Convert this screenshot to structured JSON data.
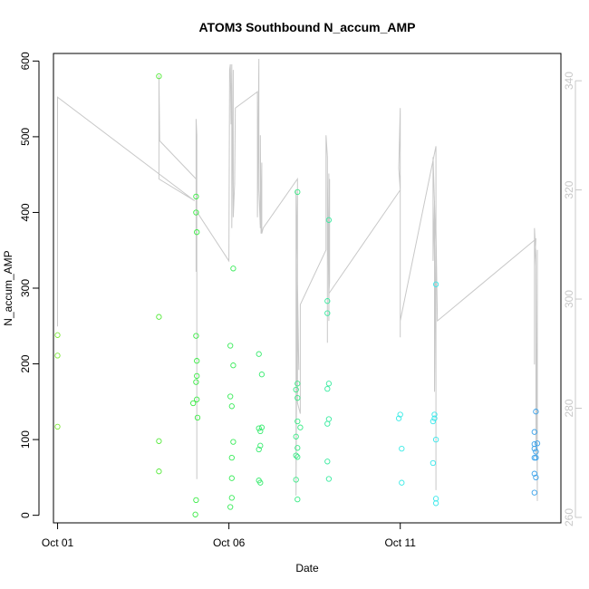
{
  "chart_data": {
    "type": "scatter",
    "title": "ATOM3 Southbound N_accum_AMP",
    "xlabel": "Date",
    "ylabel": "N_accum_AMP",
    "x_ticks": [
      {
        "date": "2012-10-01",
        "label": "Oct 01"
      },
      {
        "date": "2012-10-06",
        "label": "Oct 06"
      },
      {
        "date": "2012-10-11",
        "label": "Oct 11"
      }
    ],
    "xlim": [
      "2012-09-30T21:07",
      "2012-10-15T16:31"
    ],
    "ylim": [
      -10,
      610
    ],
    "y_ticks": [
      0,
      100,
      200,
      300,
      400,
      500,
      600
    ],
    "y2_ticks": [
      260,
      280,
      300,
      320,
      340
    ],
    "y2lim": [
      259,
      345
    ],
    "grid": false,
    "legend": "none",
    "colors": {
      "line": "#c8c8c8",
      "axis": "#000000",
      "right_axis": "#c8c8c8"
    },
    "points": [
      {
        "x": "2012-10-01T00:00",
        "y": 238,
        "color": "#7fe83a"
      },
      {
        "x": "2012-10-01T00:00",
        "y": 211,
        "color": "#7fe83a"
      },
      {
        "x": "2012-10-01T00:00",
        "y": 117,
        "color": "#7fe83a"
      },
      {
        "x": "2012-10-03T23:00",
        "y": 580,
        "color": "#55ea3a"
      },
      {
        "x": "2012-10-03T23:00",
        "y": 262,
        "color": "#55ea3a"
      },
      {
        "x": "2012-10-03T23:00",
        "y": 98,
        "color": "#55ea3a"
      },
      {
        "x": "2012-10-03T23:00",
        "y": 58,
        "color": "#55ea3a"
      },
      {
        "x": "2012-10-04T23:00",
        "y": 148,
        "color": "#3aeb45"
      },
      {
        "x": "2012-10-05T01:00",
        "y": 421,
        "color": "#3aeb45"
      },
      {
        "x": "2012-10-05T01:00",
        "y": 400,
        "color": "#3aeb45"
      },
      {
        "x": "2012-10-05T01:30",
        "y": 374,
        "color": "#3aeb45"
      },
      {
        "x": "2012-10-05T01:00",
        "y": 237,
        "color": "#3aeb45"
      },
      {
        "x": "2012-10-05T01:30",
        "y": 204,
        "color": "#3aeb45"
      },
      {
        "x": "2012-10-05T01:30",
        "y": 184,
        "color": "#3aeb45"
      },
      {
        "x": "2012-10-05T01:00",
        "y": 176,
        "color": "#3aeb45"
      },
      {
        "x": "2012-10-05T01:30",
        "y": 153,
        "color": "#3aeb45"
      },
      {
        "x": "2012-10-05T02:00",
        "y": 129,
        "color": "#3aeb45"
      },
      {
        "x": "2012-10-05T01:00",
        "y": 20,
        "color": "#3aeb45"
      },
      {
        "x": "2012-10-05T00:30",
        "y": 1,
        "color": "#3aeb45"
      },
      {
        "x": "2012-10-06T03:00",
        "y": 326,
        "color": "#3aeb5a"
      },
      {
        "x": "2012-10-06T01:00",
        "y": 224,
        "color": "#3aeb5a"
      },
      {
        "x": "2012-10-06T03:00",
        "y": 198,
        "color": "#3aeb5a"
      },
      {
        "x": "2012-10-06T01:00",
        "y": 157,
        "color": "#3aeb5a"
      },
      {
        "x": "2012-10-06T02:00",
        "y": 144,
        "color": "#3aeb5a"
      },
      {
        "x": "2012-10-06T03:00",
        "y": 97,
        "color": "#3aeb5a"
      },
      {
        "x": "2012-10-06T02:00",
        "y": 76,
        "color": "#3aeb5a"
      },
      {
        "x": "2012-10-06T02:00",
        "y": 49,
        "color": "#3aeb5a"
      },
      {
        "x": "2012-10-06T02:00",
        "y": 23,
        "color": "#3aeb5a"
      },
      {
        "x": "2012-10-06T01:00",
        "y": 11,
        "color": "#3aeb5a"
      },
      {
        "x": "2012-10-06T21:00",
        "y": 213,
        "color": "#3aeb70"
      },
      {
        "x": "2012-10-06T23:00",
        "y": 186,
        "color": "#3aeb70"
      },
      {
        "x": "2012-10-06T21:00",
        "y": 115,
        "color": "#3aeb70"
      },
      {
        "x": "2012-10-06T23:00",
        "y": 116,
        "color": "#3aeb70"
      },
      {
        "x": "2012-10-06T22:00",
        "y": 111,
        "color": "#3aeb70"
      },
      {
        "x": "2012-10-06T22:00",
        "y": 92,
        "color": "#3aeb70"
      },
      {
        "x": "2012-10-06T21:00",
        "y": 87,
        "color": "#3aeb70"
      },
      {
        "x": "2012-10-06T21:00",
        "y": 46,
        "color": "#3aeb70"
      },
      {
        "x": "2012-10-06T22:00",
        "y": 43,
        "color": "#3aeb70"
      },
      {
        "x": "2012-10-08T00:00",
        "y": 427,
        "color": "#3aeb86"
      },
      {
        "x": "2012-10-08T00:00",
        "y": 174,
        "color": "#3aeb86"
      },
      {
        "x": "2012-10-07T23:00",
        "y": 166,
        "color": "#3aeb86"
      },
      {
        "x": "2012-10-08T00:00",
        "y": 155,
        "color": "#3aeb86"
      },
      {
        "x": "2012-10-08T00:00",
        "y": 124,
        "color": "#3aeb86"
      },
      {
        "x": "2012-10-08T02:00",
        "y": 116,
        "color": "#3aeb86"
      },
      {
        "x": "2012-10-07T23:00",
        "y": 104,
        "color": "#3aeb86"
      },
      {
        "x": "2012-10-08T00:00",
        "y": 89,
        "color": "#3aeb86"
      },
      {
        "x": "2012-10-07T23:00",
        "y": 79,
        "color": "#3aeb86"
      },
      {
        "x": "2012-10-08T00:00",
        "y": 77,
        "color": "#3aeb86"
      },
      {
        "x": "2012-10-07T23:00",
        "y": 47,
        "color": "#3aeb86"
      },
      {
        "x": "2012-10-08T00:00",
        "y": 21,
        "color": "#3aeb86"
      },
      {
        "x": "2012-10-08T22:00",
        "y": 390,
        "color": "#3aeba0"
      },
      {
        "x": "2012-10-08T21:00",
        "y": 283,
        "color": "#3aeba0"
      },
      {
        "x": "2012-10-08T21:00",
        "y": 267,
        "color": "#3aeba0"
      },
      {
        "x": "2012-10-08T22:00",
        "y": 174,
        "color": "#3aeba0"
      },
      {
        "x": "2012-10-08T21:00",
        "y": 167,
        "color": "#3aeba0"
      },
      {
        "x": "2012-10-08T22:00",
        "y": 127,
        "color": "#3aeba0"
      },
      {
        "x": "2012-10-08T21:00",
        "y": 121,
        "color": "#3aeba0"
      },
      {
        "x": "2012-10-08T21:00",
        "y": 71,
        "color": "#3aeba0"
      },
      {
        "x": "2012-10-08T22:00",
        "y": 48,
        "color": "#3aeba0"
      },
      {
        "x": "2012-10-11T00:00",
        "y": 133,
        "color": "#3aebe6"
      },
      {
        "x": "2012-10-10T23:00",
        "y": 128,
        "color": "#3aebe6"
      },
      {
        "x": "2012-10-11T01:00",
        "y": 88,
        "color": "#3aebe6"
      },
      {
        "x": "2012-10-11T01:00",
        "y": 43,
        "color": "#3aebe6"
      },
      {
        "x": "2012-10-12T01:00",
        "y": 305,
        "color": "#3ae8eb"
      },
      {
        "x": "2012-10-12T00:00",
        "y": 133,
        "color": "#3ae8eb"
      },
      {
        "x": "2012-10-11T23:00",
        "y": 124,
        "color": "#3ae8eb"
      },
      {
        "x": "2012-10-12T00:00",
        "y": 128,
        "color": "#3ae8eb"
      },
      {
        "x": "2012-10-12T01:00",
        "y": 100,
        "color": "#3ae8eb"
      },
      {
        "x": "2012-10-11T23:00",
        "y": 69,
        "color": "#3ae8eb"
      },
      {
        "x": "2012-10-12T01:00",
        "y": 22,
        "color": "#3ae8eb"
      },
      {
        "x": "2012-10-12T01:00",
        "y": 16,
        "color": "#3ae8eb"
      },
      {
        "x": "2012-10-14T23:00",
        "y": 137,
        "color": "#3aa2eb"
      },
      {
        "x": "2012-10-14T22:00",
        "y": 110,
        "color": "#3aa2eb"
      },
      {
        "x": "2012-10-15T00:00",
        "y": 95,
        "color": "#3aa2eb"
      },
      {
        "x": "2012-10-14T22:00",
        "y": 94,
        "color": "#3aa2eb"
      },
      {
        "x": "2012-10-14T22:00",
        "y": 88,
        "color": "#3aa2eb"
      },
      {
        "x": "2012-10-14T23:00",
        "y": 84,
        "color": "#3aa2eb"
      },
      {
        "x": "2012-10-14T22:00",
        "y": 76,
        "color": "#3aa2eb"
      },
      {
        "x": "2012-10-14T23:00",
        "y": 76,
        "color": "#3aa2eb"
      },
      {
        "x": "2012-10-14T22:00",
        "y": 55,
        "color": "#3aa2eb"
      },
      {
        "x": "2012-10-14T23:00",
        "y": 50,
        "color": "#3aa2eb"
      },
      {
        "x": "2012-10-14T22:00",
        "y": 30,
        "color": "#3aa2eb"
      }
    ],
    "line_series": [
      [
        "2012-10-01T00:00",
        295
      ],
      [
        "2012-10-01T00:00",
        337
      ],
      [
        "2012-10-05T00:00",
        318
      ],
      [
        "2012-10-03T23:00",
        322
      ],
      [
        "2012-10-03T23:00",
        341
      ],
      [
        "2012-10-03T23:30",
        329
      ],
      [
        "2012-10-05T01:00",
        322
      ],
      [
        "2012-10-05T01:00",
        318
      ],
      [
        "2012-10-05T01:00",
        305
      ],
      [
        "2012-10-05T01:00",
        333
      ],
      [
        "2012-10-05T01:30",
        330
      ],
      [
        "2012-10-05T01:30",
        267
      ],
      [
        "2012-10-05T01:30",
        316
      ],
      [
        "2012-10-06T00:00",
        307
      ],
      [
        "2012-10-06T00:30",
        342
      ],
      [
        "2012-10-06T01:00",
        343
      ],
      [
        "2012-10-06T01:30",
        332
      ],
      [
        "2012-10-06T02:00",
        343
      ],
      [
        "2012-10-06T02:00",
        313
      ],
      [
        "2012-10-06T03:00",
        342
      ],
      [
        "2012-10-06T03:00",
        315
      ],
      [
        "2012-10-06T04:00",
        321
      ],
      [
        "2012-10-06T04:30",
        335
      ],
      [
        "2012-10-06T20:00",
        338
      ],
      [
        "2012-10-06T20:00",
        315
      ],
      [
        "2012-10-06T21:00",
        344
      ],
      [
        "2012-10-06T21:00",
        320
      ],
      [
        "2012-10-06T22:00",
        313
      ],
      [
        "2012-10-06T22:00",
        330
      ],
      [
        "2012-10-06T22:30",
        312
      ],
      [
        "2012-10-06T23:00",
        325
      ],
      [
        "2012-10-06T23:00",
        312
      ],
      [
        "2012-10-07T00:00",
        313
      ],
      [
        "2012-10-08T00:00",
        322
      ],
      [
        "2012-10-08T00:00",
        298
      ],
      [
        "2012-10-08T01:00",
        287
      ],
      [
        "2012-10-07T23:00",
        320
      ],
      [
        "2012-10-07T23:00",
        264
      ],
      [
        "2012-10-08T00:00",
        321
      ],
      [
        "2012-10-08T00:00",
        281
      ],
      [
        "2012-10-08T02:00",
        279
      ],
      [
        "2012-10-08T02:00",
        299
      ],
      [
        "2012-10-08T20:00",
        309
      ],
      [
        "2012-10-08T20:00",
        330
      ],
      [
        "2012-10-08T21:00",
        326
      ],
      [
        "2012-10-08T21:00",
        292
      ],
      [
        "2012-10-08T21:00",
        322
      ],
      [
        "2012-10-08T22:00",
        300
      ],
      [
        "2012-10-08T22:00",
        323
      ],
      [
        "2012-10-08T22:00",
        296
      ],
      [
        "2012-10-08T22:30",
        322
      ],
      [
        "2012-10-08T22:30",
        303
      ],
      [
        "2012-10-08T22:00",
        301
      ],
      [
        "2012-10-11T00:00",
        320
      ],
      [
        "2012-10-10T23:00",
        324
      ],
      [
        "2012-10-11T00:00",
        335
      ],
      [
        "2012-10-11T00:00",
        320
      ],
      [
        "2012-10-11T00:00",
        329
      ],
      [
        "2012-10-11T00:00",
        293
      ],
      [
        "2012-10-11T00:00",
        296
      ],
      [
        "2012-10-12T01:00",
        328
      ],
      [
        "2012-10-12T01:00",
        309
      ],
      [
        "2012-10-11T23:00",
        326
      ],
      [
        "2012-10-11T23:00",
        307
      ],
      [
        "2012-10-12T00:00",
        318
      ],
      [
        "2012-10-12T00:00",
        283
      ],
      [
        "2012-10-12T01:00",
        315
      ],
      [
        "2012-10-12T01:00",
        265
      ],
      [
        "2012-10-12T01:00",
        324
      ],
      [
        "2012-10-12T01:00",
        300
      ],
      [
        "2012-10-12T01:00",
        313
      ],
      [
        "2012-10-12T02:00",
        296
      ],
      [
        "2012-10-14T23:00",
        311
      ],
      [
        "2012-10-14T22:00",
        306
      ],
      [
        "2012-10-14T22:00",
        288
      ],
      [
        "2012-10-14T22:00",
        313
      ],
      [
        "2012-10-14T23:00",
        308
      ],
      [
        "2012-10-14T23:00",
        271
      ],
      [
        "2012-10-14T23:00",
        307
      ],
      [
        "2012-10-15T00:00",
        263
      ],
      [
        "2012-10-15T00:00",
        309
      ]
    ]
  }
}
